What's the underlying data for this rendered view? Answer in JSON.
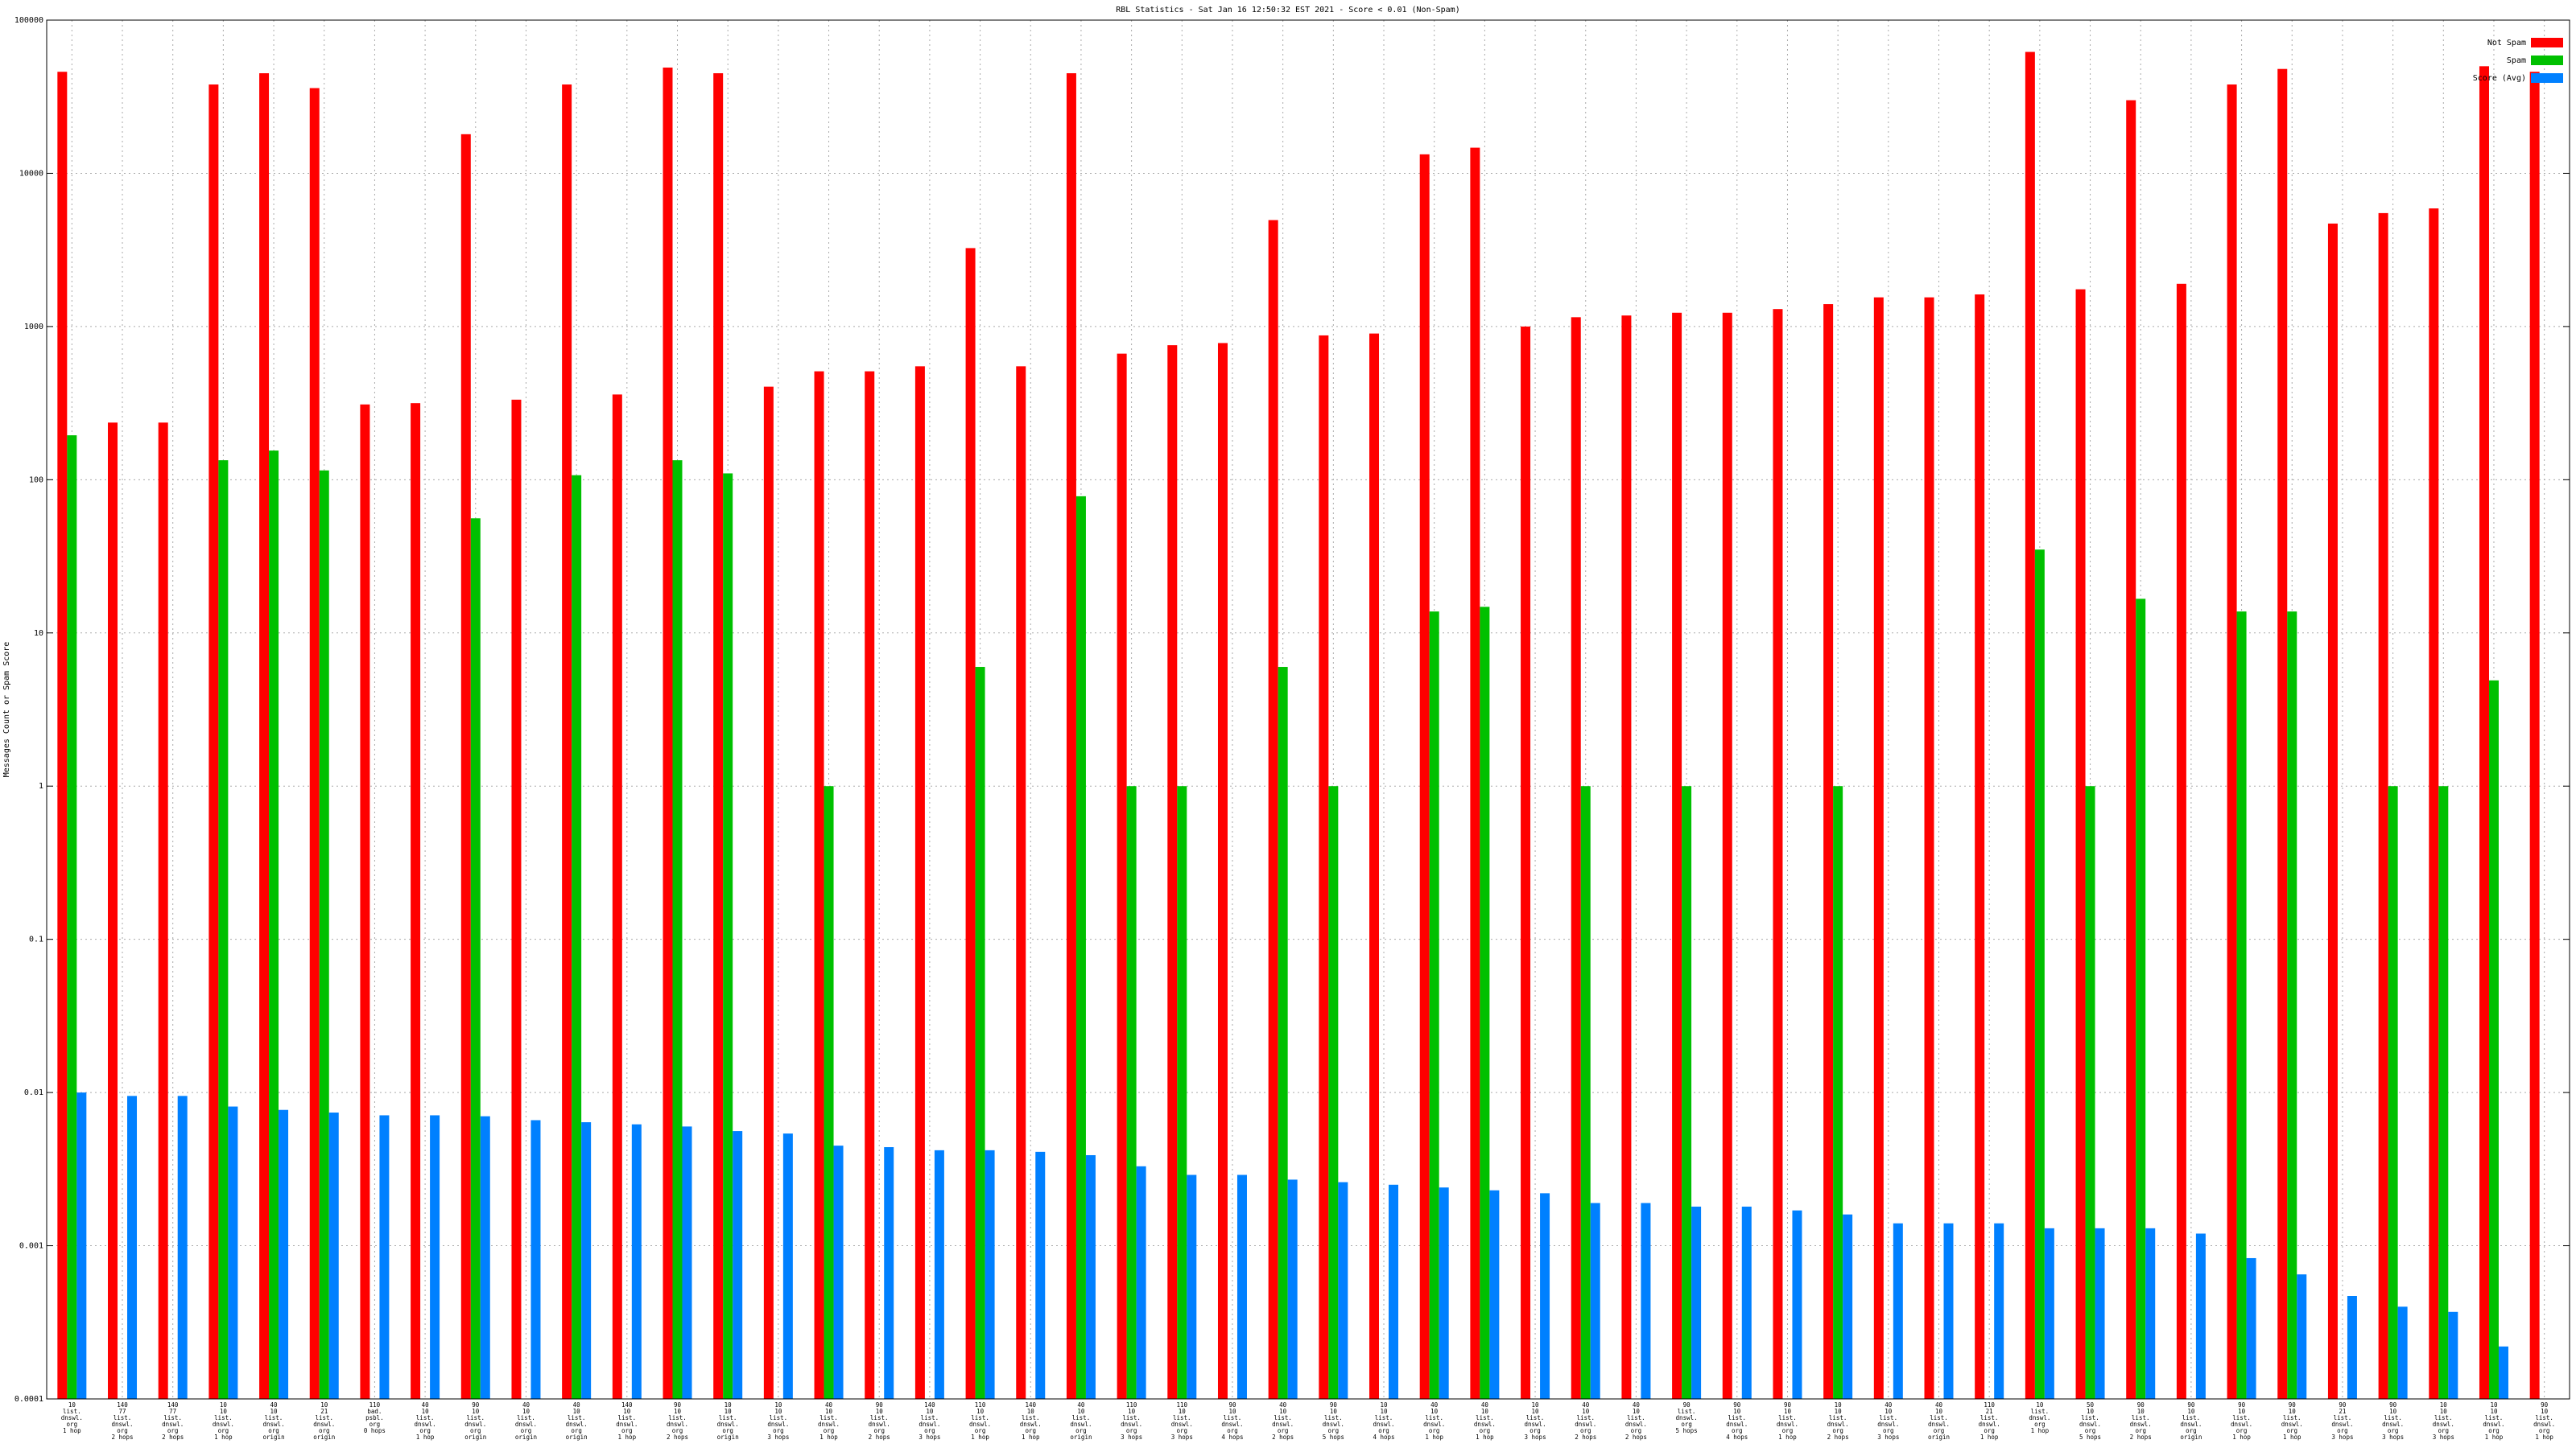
{
  "chart_data": {
    "type": "bar",
    "title": "RBL Statistics - Sat Jan 16 12:50:32 EST 2021 - Score < 0.01 (Non-Spam)",
    "y_label": "Messages Count or Spam Score",
    "log_scale": true,
    "grid": true,
    "legend_position": "upper right",
    "ylim": [
      0.0001,
      100000
    ],
    "yticks": [
      0.0001,
      0.001,
      0.01,
      0.1,
      1,
      10,
      100,
      1000,
      10000,
      100000
    ],
    "categories": [
      "10\nlist.\ndnswl.\norg\n1 hop",
      "140\n77\nlist.\ndnswl.\norg\n2 hops",
      "140\n77\nlist.\ndnswl.\norg\n2 hops",
      "10\n10\nlist.\ndnswl.\norg\n1 hop",
      "40\n10\nlist.\ndnswl.\norg\norigin",
      "10\n21\nlist.\ndnswl.\norg\norigin",
      "110\nbad.\npsbl.\norg\n0 hops",
      "40\n10\nlist.\ndnswl.\norg\n1 hop",
      "90\n10\nlist.\ndnswl.\norg\norigin",
      "40\n10\nlist.\ndnswl.\norg\norigin",
      "40\n10\nlist.\ndnswl.\norg\norigin",
      "140\n10\nlist.\ndnswl.\norg\n1 hop",
      "90\n10\nlist.\ndnswl.\norg\n2 hops",
      "10\n10\nlist.\ndnswl.\norg\norigin",
      "10\n10\nlist.\ndnswl.\norg\n3 hops",
      "40\n10\nlist.\ndnswl.\norg\n1 hop",
      "90\n10\nlist.\ndnswl.\norg\n2 hops",
      "140\n10\nlist.\ndnswl.\norg\n3 hops",
      "110\n10\nlist.\ndnswl.\norg\n1 hop",
      "140\n10\nlist.\ndnswl.\norg\n1 hop",
      "40\n10\nlist.\ndnswl.\norg\norigin",
      "110\n10\nlist.\ndnswl.\norg\n3 hops",
      "110\n10\nlist.\ndnswl.\norg\n3 hops",
      "90\n10\nlist.\ndnswl.\norg\n4 hops",
      "40\n10\nlist.\ndnswl.\norg\n2 hops",
      "90\n10\nlist.\ndnswl.\norg\n5 hops",
      "10\n10\nlist.\ndnswl.\norg\n4 hops",
      "40\n10\nlist.\ndnswl.\norg\n1 hop",
      "40\n10\nlist.\ndnswl.\norg\n1 hop",
      "10\n10\nlist.\ndnswl.\norg\n3 hops",
      "40\n10\nlist.\ndnswl.\norg\n2 hops",
      "40\n10\nlist.\ndnswl.\norg\n2 hops",
      "90\nlist.\ndnswl.\norg\n5 hops",
      "90\n10\nlist.\ndnswl.\norg\n4 hops",
      "90\n10\nlist.\ndnswl.\norg\n1 hop",
      "10\n10\nlist.\ndnswl.\norg\n2 hops",
      "40\n10\nlist.\ndnswl.\norg\n3 hops",
      "40\n10\nlist.\ndnswl.\norg\norigin",
      "110\n21\nlist.\ndnswl.\norg\n1 hop",
      "10\nlist.\ndnswl.\norg\n1 hop",
      "50\n10\nlist.\ndnswl.\norg\n5 hops",
      "90\n10\nlist.\ndnswl.\norg\n2 hops",
      "90\n10\nlist.\ndnswl.\norg\norigin",
      "90\n10\nlist.\ndnswl.\norg\n1 hop",
      "90\n10\nlist.\ndnswl.\norg\n1 hop",
      "90\n21\nlist.\ndnswl.\norg\n3 hops",
      "90\n10\nlist.\ndnswl.\norg\n3 hops",
      "10\n10\nlist.\ndnswl.\norg\n3 hops",
      "10\n10\nlist.\ndnswl.\norg\n1 hop",
      "90\n10\nlist.\ndnswl.\norg\n1 hop"
    ],
    "series": [
      {
        "name": "Not Spam",
        "color": "#ff0000",
        "values": [
          46000,
          236,
          236,
          38000,
          45000,
          36000,
          310,
          316,
          18000,
          333,
          38000,
          360,
          49000,
          45000,
          405,
          510,
          510,
          550,
          3250,
          550,
          45000,
          665,
          755,
          780,
          4950,
          875,
          900,
          13300,
          14700,
          1000,
          1150,
          1180,
          1230,
          1230,
          1300,
          1400,
          1550,
          1550,
          1620,
          62000,
          1750,
          30000,
          1900,
          38000,
          48000,
          4700,
          5500,
          5900,
          50000,
          46000
        ]
      },
      {
        "name": "Spam",
        "color": "#00c000",
        "values": [
          195,
          null,
          null,
          134,
          155,
          115,
          null,
          null,
          56,
          null,
          107,
          null,
          134,
          110,
          null,
          1,
          null,
          null,
          6,
          null,
          78,
          1,
          1,
          null,
          6,
          1,
          null,
          13.8,
          14.8,
          null,
          1,
          null,
          1,
          null,
          null,
          1,
          null,
          null,
          null,
          35,
          1,
          16.7,
          null,
          13.8,
          13.8,
          null,
          1,
          1,
          4.9,
          null
        ]
      },
      {
        "name": "Score (Avg)",
        "color": "#0080ff",
        "values": [
          0.01,
          0.0095,
          0.0095,
          0.0081,
          0.0077,
          0.0074,
          0.0071,
          0.0071,
          0.007,
          0.0066,
          0.0064,
          0.0062,
          0.006,
          0.0056,
          0.0054,
          0.0045,
          0.0044,
          0.0042,
          0.0042,
          0.0041,
          0.0039,
          0.0033,
          0.0029,
          0.0029,
          0.0027,
          0.0026,
          0.0025,
          0.0024,
          0.0023,
          0.0022,
          0.0019,
          0.0019,
          0.0018,
          0.0018,
          0.0017,
          0.0016,
          0.0014,
          0.0014,
          0.0014,
          0.0013,
          0.0013,
          0.0013,
          0.0012,
          0.00083,
          0.00065,
          0.00047,
          0.0004,
          0.00037,
          0.00022,
          null
        ]
      }
    ]
  }
}
